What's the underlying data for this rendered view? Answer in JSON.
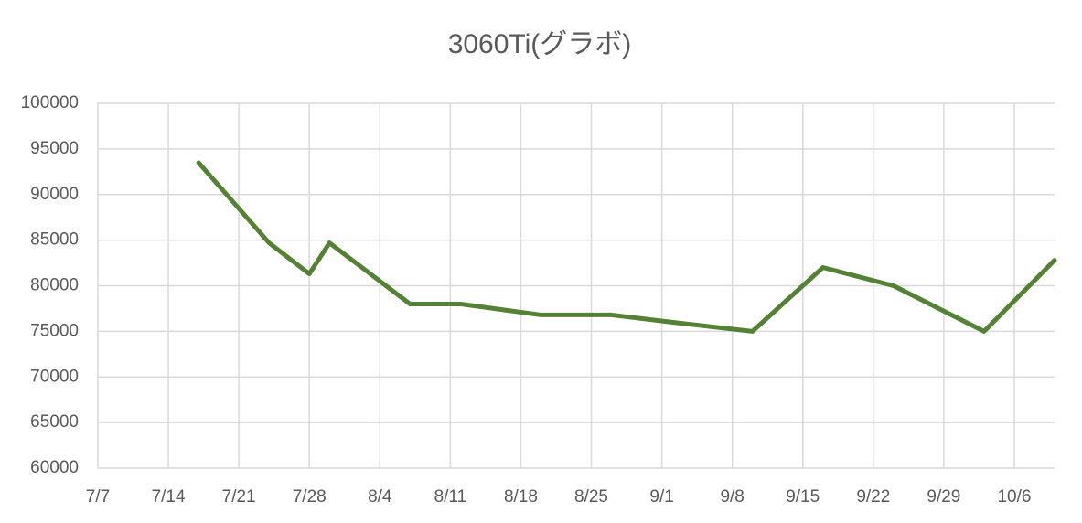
{
  "chart_data": {
    "type": "line",
    "title": "3060Ti(グラボ)",
    "x": [
      "7/17",
      "7/24",
      "7/28",
      "7/30",
      "8/7",
      "8/12",
      "8/20",
      "8/27",
      "9/2",
      "9/10",
      "9/17",
      "9/24",
      "10/3",
      "10/10"
    ],
    "series": [
      {
        "name": "3060Ti",
        "color": "#548235",
        "values": [
          93500,
          84700,
          81300,
          84700,
          78000,
          78000,
          76800,
          76800,
          76000,
          75000,
          82000,
          80000,
          75000,
          82800
        ]
      }
    ],
    "xlim": [
      "7/7",
      "10/10"
    ],
    "xticks": [
      "7/7",
      "7/14",
      "7/21",
      "7/28",
      "8/4",
      "8/11",
      "8/18",
      "8/25",
      "9/1",
      "9/8",
      "9/15",
      "9/22",
      "9/29",
      "10/6"
    ],
    "ylim": [
      60000,
      100000
    ],
    "yticks": [
      60000,
      65000,
      70000,
      75000,
      80000,
      85000,
      90000,
      95000,
      100000
    ],
    "grid": true
  }
}
